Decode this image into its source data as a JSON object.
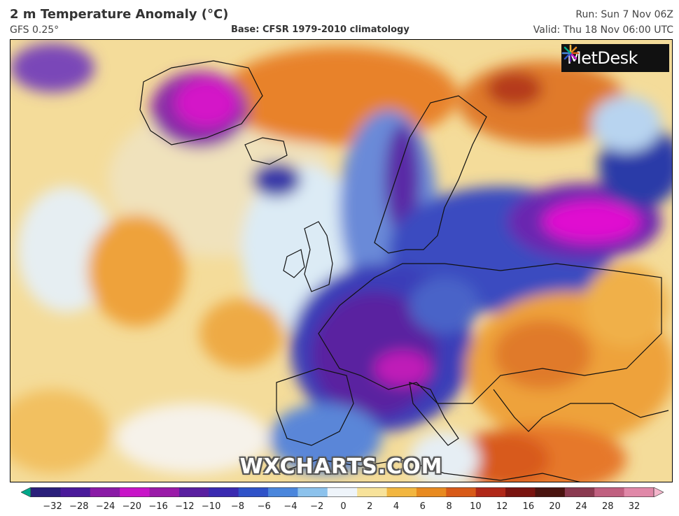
{
  "header": {
    "title": "2 m Temperature Anomaly (°C)",
    "model": "GFS 0.25°",
    "base": "Base: CFSR 1979-2010 climatology",
    "run": "Run: Sun 7 Nov 06Z",
    "valid": "Valid: Thu 18 Nov 06:00 UTC"
  },
  "map": {
    "logo_text": "MetDesk",
    "logo_icon": "metdesk-burst-icon",
    "watermark": "WXCHARTS.COM",
    "region": "Europe and North Atlantic"
  },
  "legend": {
    "tick_labels": [
      "−32",
      "−28",
      "−24",
      "−20",
      "−16",
      "−12",
      "−10",
      "−8",
      "−6",
      "−4",
      "−2",
      "0",
      "2",
      "4",
      "6",
      "8",
      "10",
      "12",
      "16",
      "20",
      "24",
      "28",
      "32"
    ],
    "colors": [
      "#00a88a",
      "#2a1f7a",
      "#4a1a9a",
      "#8a1aa6",
      "#c814c8",
      "#9a1aa8",
      "#5a1fa0",
      "#3a2ab0",
      "#2f52c8",
      "#4a86dc",
      "#8cc2ec",
      "#eef4fa",
      "#f7e29a",
      "#f2b640",
      "#e88a20",
      "#d85a18",
      "#b02818",
      "#7a1410",
      "#4a1410",
      "#8a3a50",
      "#c06080",
      "#e088a8",
      "#f4b6cc"
    ]
  }
}
